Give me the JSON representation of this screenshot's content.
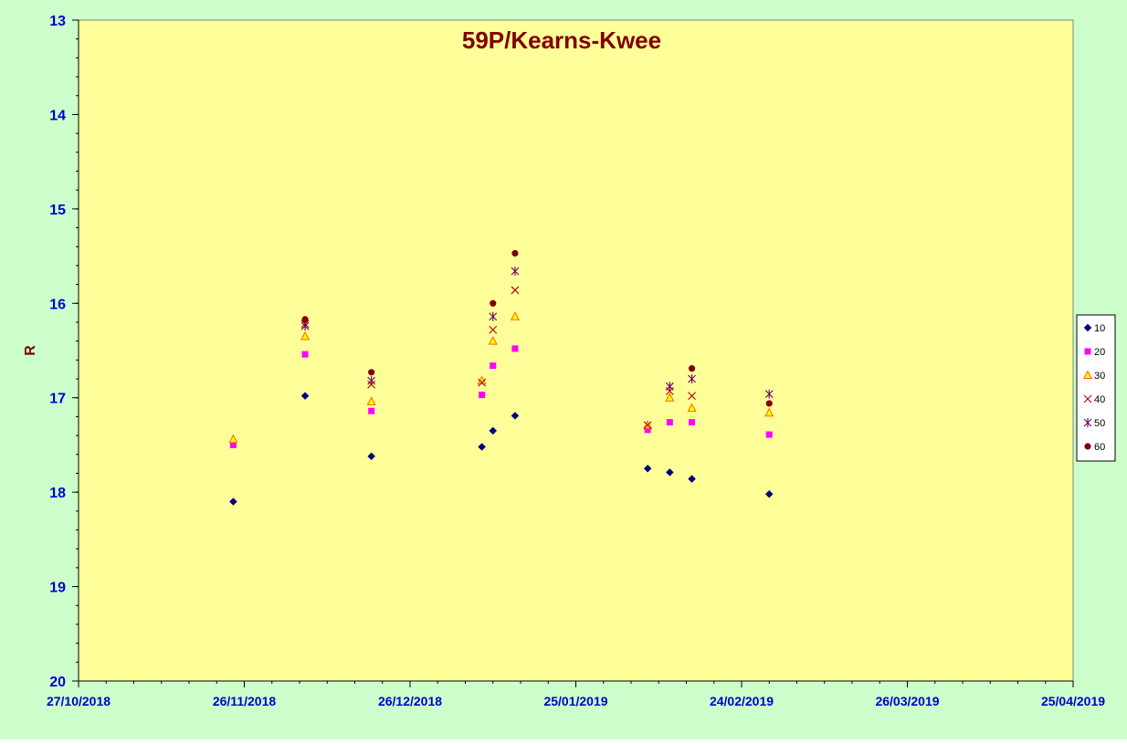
{
  "chart_data": {
    "type": "scatter",
    "title": "59P/Kearns-Kwee",
    "xlabel": "",
    "ylabel": "R",
    "x_axis": {
      "type": "date",
      "range": [
        "27/10/2018",
        "25/04/2019"
      ],
      "tick_labels": [
        "27/10/2018",
        "26/11/2018",
        "26/12/2018",
        "25/01/2019",
        "24/02/2019",
        "26/03/2019",
        "25/04/2019"
      ],
      "major_step_days": 30,
      "minor_step_days": 5
    },
    "y_axis": {
      "range": [
        13,
        20
      ],
      "reversed": true,
      "tick_labels": [
        "13",
        "14",
        "15",
        "16",
        "17",
        "18",
        "19",
        "20"
      ],
      "minor_step": 0.2
    },
    "grid": false,
    "legend_position": "right",
    "colors": {
      "outer_background": "#CCFFCC",
      "plot_background": "#FFFF99",
      "title": "#800000",
      "axis_labels": "#0000CC",
      "ylabel": "#800000"
    },
    "series": [
      {
        "name": "10",
        "marker": "diamond",
        "color": "#000080",
        "points": [
          {
            "x": "2018-11-24",
            "y": 18.1
          },
          {
            "x": "2018-12-07",
            "y": 16.98
          },
          {
            "x": "2018-12-19",
            "y": 17.62
          },
          {
            "x": "2019-01-08",
            "y": 17.52
          },
          {
            "x": "2019-01-10",
            "y": 17.35
          },
          {
            "x": "2019-01-14",
            "y": 17.19
          },
          {
            "x": "2019-02-07",
            "y": 17.75
          },
          {
            "x": "2019-02-11",
            "y": 17.79
          },
          {
            "x": "2019-02-15",
            "y": 17.86
          },
          {
            "x": "2019-02-29",
            "y": 18.02
          }
        ]
      },
      {
        "name": "20",
        "marker": "square",
        "color": "#FF00FF",
        "points": [
          {
            "x": "2018-11-24",
            "y": 17.5
          },
          {
            "x": "2018-12-07",
            "y": 16.54
          },
          {
            "x": "2018-12-19",
            "y": 17.14
          },
          {
            "x": "2019-01-08",
            "y": 16.97
          },
          {
            "x": "2019-01-10",
            "y": 16.66
          },
          {
            "x": "2019-01-14",
            "y": 16.48
          },
          {
            "x": "2019-02-07",
            "y": 17.34
          },
          {
            "x": "2019-02-11",
            "y": 17.26
          },
          {
            "x": "2019-02-15",
            "y": 17.26
          },
          {
            "x": "2019-02-29",
            "y": 17.39
          }
        ]
      },
      {
        "name": "30",
        "marker": "triangle",
        "color": "#FF6600",
        "fill": "#FFFF00",
        "points": [
          {
            "x": "2018-11-24",
            "y": 17.44
          },
          {
            "x": "2018-12-07",
            "y": 16.35
          },
          {
            "x": "2018-12-19",
            "y": 17.04
          },
          {
            "x": "2019-01-08",
            "y": 16.82
          },
          {
            "x": "2019-01-10",
            "y": 16.4
          },
          {
            "x": "2019-01-14",
            "y": 16.14
          },
          {
            "x": "2019-02-07",
            "y": 17.29
          },
          {
            "x": "2019-02-11",
            "y": 17.0
          },
          {
            "x": "2019-02-15",
            "y": 17.11
          },
          {
            "x": "2019-02-29",
            "y": 17.16
          }
        ]
      },
      {
        "name": "40",
        "marker": "x",
        "color": "#B00000",
        "points": [
          {
            "x": "2018-12-07",
            "y": 16.22
          },
          {
            "x": "2018-12-19",
            "y": 16.86
          },
          {
            "x": "2019-01-08",
            "y": 16.84
          },
          {
            "x": "2019-01-10",
            "y": 16.28
          },
          {
            "x": "2019-01-14",
            "y": 15.86
          },
          {
            "x": "2019-02-07",
            "y": 17.29
          },
          {
            "x": "2019-02-11",
            "y": 16.93
          },
          {
            "x": "2019-02-15",
            "y": 16.98
          }
        ]
      },
      {
        "name": "50",
        "marker": "star",
        "color": "#660066",
        "points": [
          {
            "x": "2018-12-07",
            "y": 16.24
          },
          {
            "x": "2018-12-19",
            "y": 16.82
          },
          {
            "x": "2019-01-10",
            "y": 16.14
          },
          {
            "x": "2019-01-14",
            "y": 15.66
          },
          {
            "x": "2019-02-11",
            "y": 16.88
          },
          {
            "x": "2019-02-15",
            "y": 16.8
          },
          {
            "x": "2019-02-29",
            "y": 16.96
          }
        ]
      },
      {
        "name": "60",
        "marker": "circle",
        "color": "#800000",
        "points": [
          {
            "x": "2018-12-07",
            "y": 16.17
          },
          {
            "x": "2018-12-19",
            "y": 16.73
          },
          {
            "x": "2019-01-10",
            "y": 16.0
          },
          {
            "x": "2019-01-14",
            "y": 15.47
          },
          {
            "x": "2019-02-15",
            "y": 16.69
          },
          {
            "x": "2019-02-29",
            "y": 17.06
          }
        ]
      }
    ]
  }
}
